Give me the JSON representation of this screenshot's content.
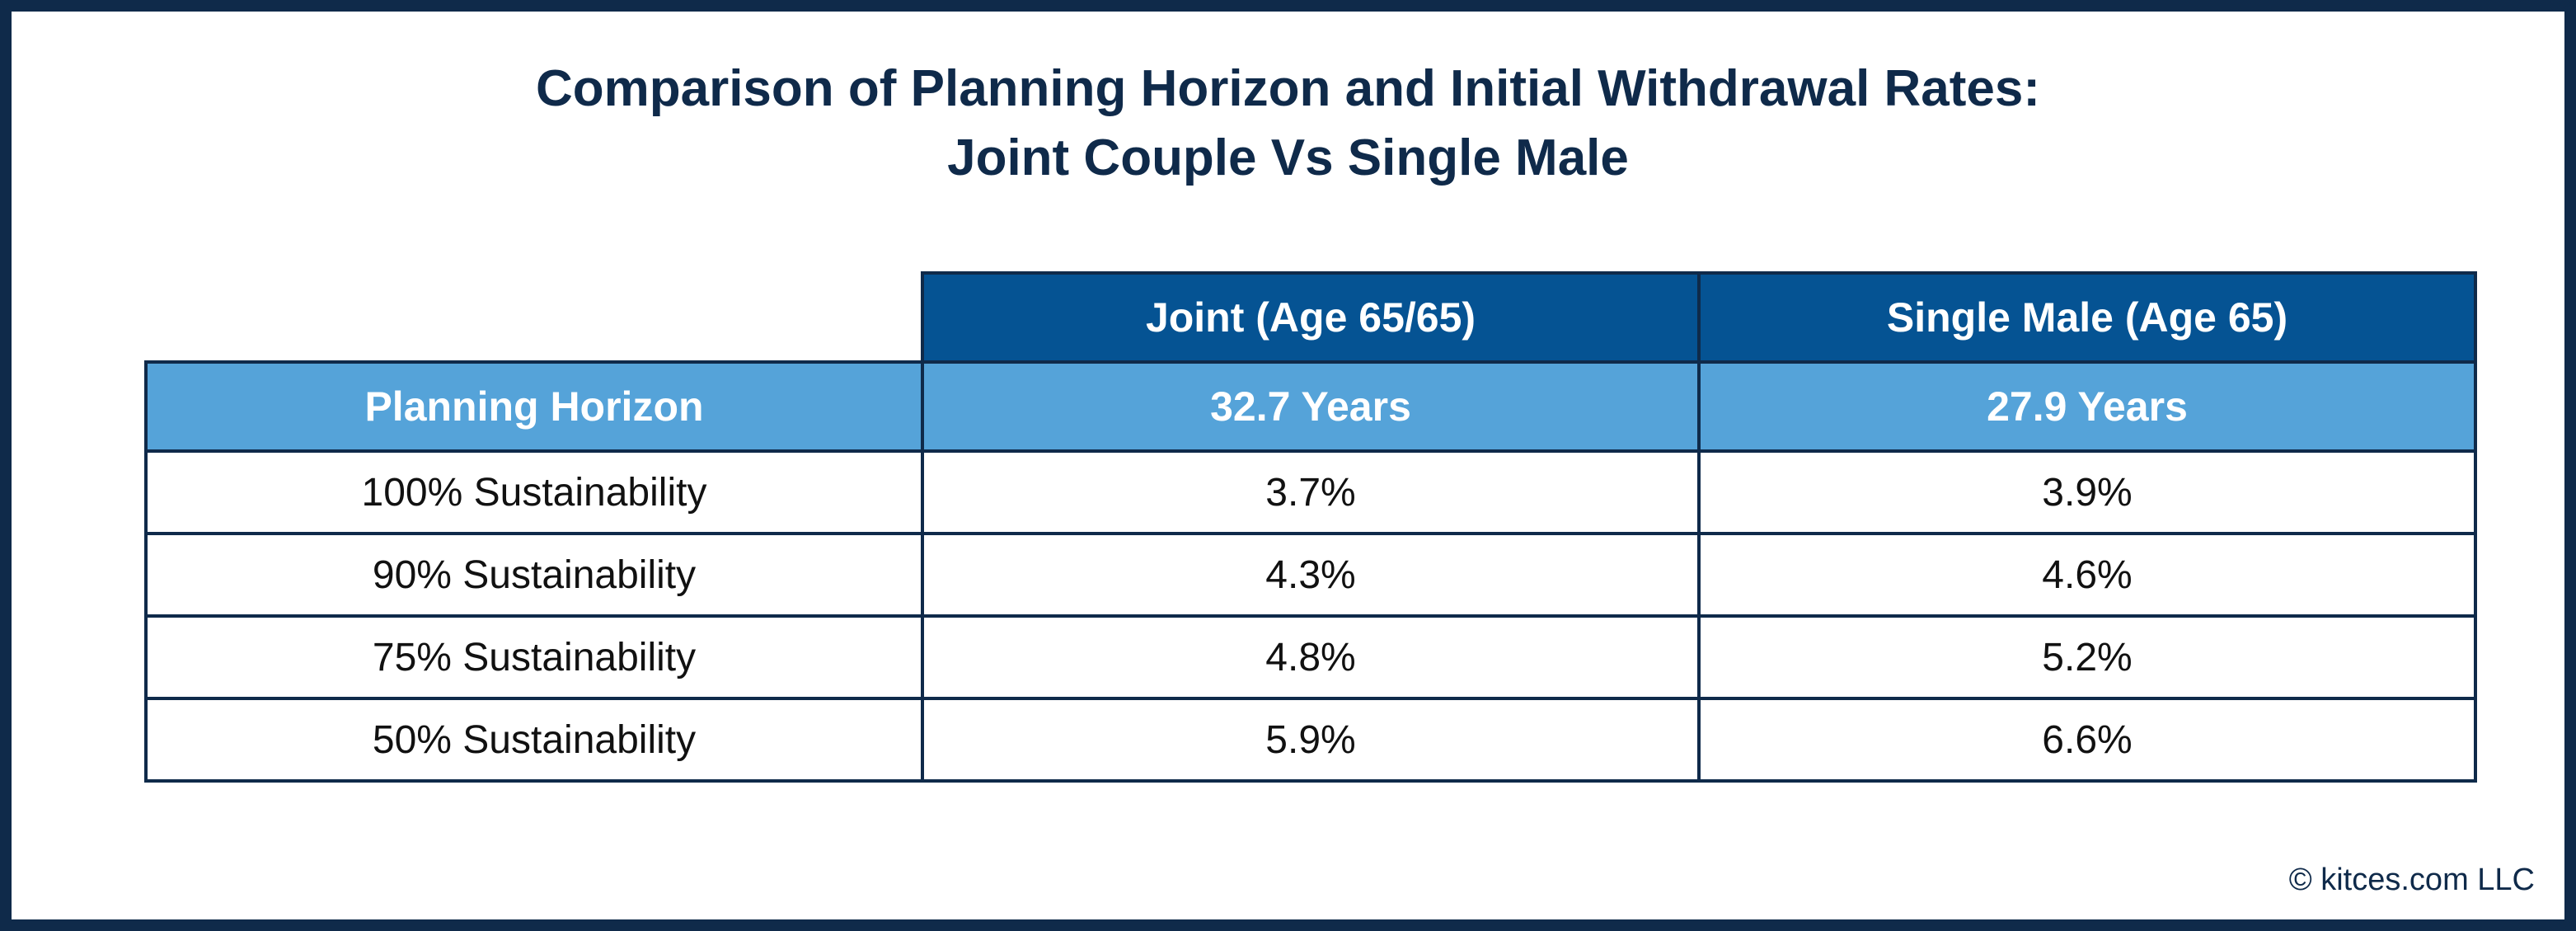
{
  "chart_data": {
    "type": "table",
    "title_lines": [
      "Comparison of Planning Horizon and Initial Withdrawal Rates:",
      "Joint Couple Vs Single Male"
    ],
    "columns": [
      "",
      "Joint (Age 65/65)",
      "Single Male (Age 65)"
    ],
    "horizon_row": {
      "label": "Planning Horizon",
      "values": [
        "32.7 Years",
        "27.9 Years"
      ]
    },
    "rows": [
      {
        "label": "100% Sustainability",
        "values": [
          "3.7%",
          "3.9%"
        ]
      },
      {
        "label": "90% Sustainability",
        "values": [
          "4.3%",
          "4.6%"
        ]
      },
      {
        "label": "75% Sustainability",
        "values": [
          "4.8%",
          "5.2%"
        ]
      },
      {
        "label": "50% Sustainability",
        "values": [
          "5.9%",
          "6.6%"
        ]
      }
    ],
    "series": [
      {
        "name": "Joint (Age 65/65)",
        "planning_horizon_years": 32.7,
        "values": [
          3.7,
          4.3,
          4.8,
          5.9
        ]
      },
      {
        "name": "Single Male (Age 65)",
        "planning_horizon_years": 27.9,
        "values": [
          3.9,
          4.6,
          5.2,
          6.6
        ]
      }
    ],
    "categories": [
      "100% Sustainability",
      "90% Sustainability",
      "75% Sustainability",
      "50% Sustainability"
    ]
  },
  "credit": "© kitces.com LLC",
  "colors": {
    "frame": "#0f2a4a",
    "header_dark_blue": "#055393",
    "header_light_blue": "#55a3d9",
    "title_text": "#0f2a4a"
  }
}
